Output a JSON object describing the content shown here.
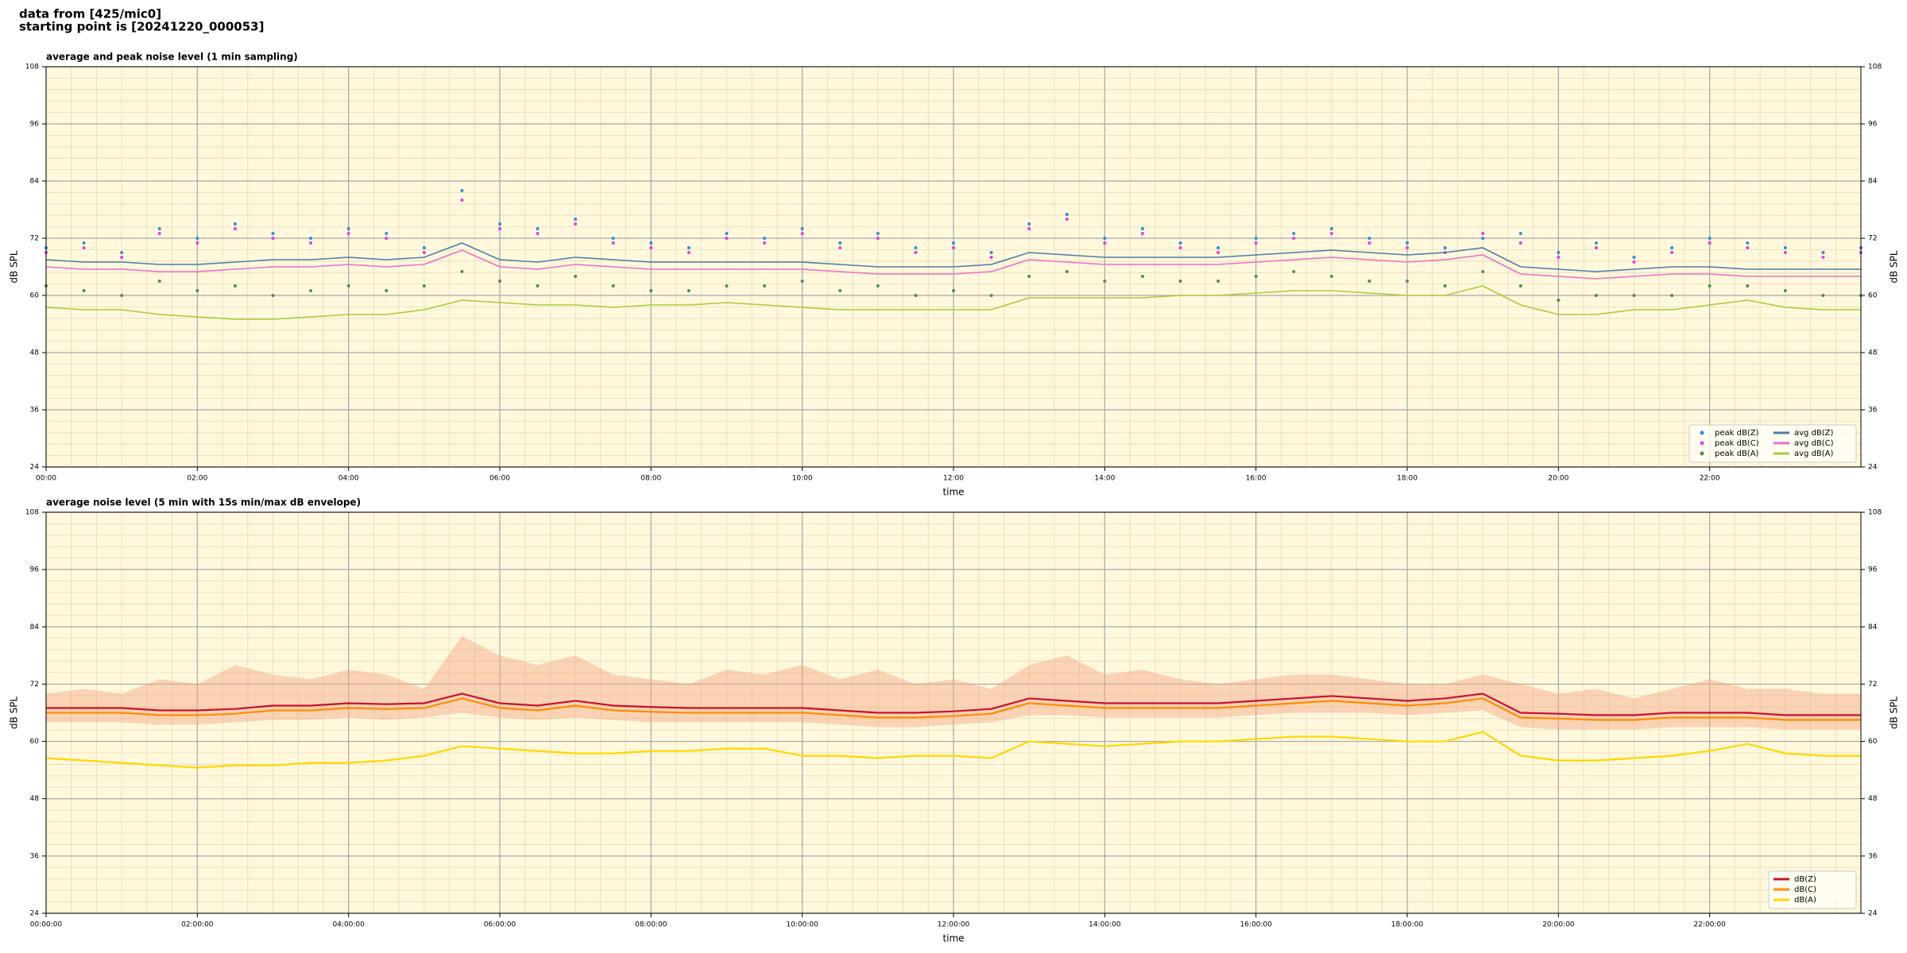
{
  "header": {
    "line1": "data from [425/mic0]",
    "line2": "starting point is [20241220_000053]"
  },
  "chart_data": [
    {
      "type": "line",
      "title": "average and peak noise level (1 min sampling)",
      "xlabel": "time",
      "ylabel": "dB SPL",
      "background": "#fff8dc",
      "grid": true,
      "minor_divisions": [
        6,
        5
      ],
      "legend": "lower right",
      "legend_columns": 2,
      "xlim": [
        0,
        24
      ],
      "ylim": [
        24,
        108
      ],
      "yticks": [
        24,
        36,
        48,
        60,
        72,
        84,
        96,
        108
      ],
      "xticks": [
        {
          "value": 0,
          "label": "00:00"
        },
        {
          "value": 2,
          "label": "02:00"
        },
        {
          "value": 4,
          "label": "04:00"
        },
        {
          "value": 6,
          "label": "06:00"
        },
        {
          "value": 8,
          "label": "08:00"
        },
        {
          "value": 10,
          "label": "10:00"
        },
        {
          "value": 12,
          "label": "12:00"
        },
        {
          "value": 14,
          "label": "14:00"
        },
        {
          "value": 16,
          "label": "16:00"
        },
        {
          "value": 18,
          "label": "18:00"
        },
        {
          "value": 20,
          "label": "20:00"
        },
        {
          "value": 22,
          "label": "22:00"
        }
      ],
      "x": [
        0,
        0.5,
        1,
        1.5,
        2,
        2.5,
        3,
        3.5,
        4,
        4.5,
        5,
        5.5,
        6,
        6.5,
        7,
        7.5,
        8,
        8.5,
        9,
        9.5,
        10,
        10.5,
        11,
        11.5,
        12,
        12.5,
        13,
        13.5,
        14,
        14.5,
        15,
        15.5,
        16,
        16.5,
        17,
        17.5,
        18,
        18.5,
        19,
        19.5,
        20,
        20.5,
        21,
        21.5,
        22,
        22.5,
        23,
        23.5,
        24
      ],
      "series": [
        {
          "name": "peak dB(Z)",
          "style": "points",
          "color": "#2f8fd8",
          "values": [
            70,
            71,
            69,
            74,
            72,
            75,
            73,
            72,
            74,
            73,
            70,
            82,
            75,
            74,
            76,
            72,
            71,
            70,
            73,
            72,
            74,
            71,
            73,
            70,
            71,
            69,
            75,
            77,
            72,
            74,
            71,
            70,
            72,
            73,
            74,
            72,
            71,
            70,
            72,
            73,
            69,
            71,
            68,
            70,
            72,
            71,
            70,
            69,
            70
          ]
        },
        {
          "name": "peak dB(C)",
          "style": "points",
          "color": "#e040e0",
          "values": [
            69,
            70,
            68,
            73,
            71,
            74,
            72,
            71,
            73,
            72,
            69,
            80,
            74,
            73,
            75,
            71,
            70,
            69,
            72,
            71,
            73,
            70,
            72,
            69,
            70,
            68,
            74,
            76,
            71,
            73,
            70,
            69,
            71,
            72,
            73,
            71,
            70,
            69,
            73,
            71,
            68,
            70,
            67,
            69,
            71,
            70,
            69,
            68,
            69
          ]
        },
        {
          "name": "peak dB(A)",
          "style": "points",
          "color": "#4f8f4f",
          "values": [
            62,
            61,
            60,
            63,
            61,
            62,
            60,
            61,
            62,
            61,
            62,
            65,
            63,
            62,
            64,
            62,
            61,
            61,
            62,
            62,
            63,
            61,
            62,
            60,
            61,
            60,
            64,
            65,
            63,
            64,
            63,
            63,
            64,
            65,
            64,
            63,
            63,
            62,
            65,
            62,
            59,
            60,
            60,
            60,
            62,
            62,
            61,
            60,
            60
          ]
        },
        {
          "name": "avg dB(Z)",
          "style": "line",
          "color": "#4a7ea8",
          "values": [
            67.5,
            67,
            67,
            66.5,
            66.5,
            67,
            67.5,
            67.5,
            68,
            67.5,
            68,
            71,
            67.5,
            67,
            68,
            67.5,
            67,
            67,
            67,
            67,
            67,
            66.5,
            66,
            66,
            66,
            66.5,
            69,
            68.5,
            68,
            68,
            68,
            68,
            68.5,
            69,
            69.5,
            69,
            68.5,
            69,
            70,
            66,
            65.5,
            65,
            65.5,
            66,
            66,
            65.5,
            65.5,
            65.5,
            65.5
          ]
        },
        {
          "name": "avg dB(C)",
          "style": "line",
          "color": "#ee6ecb",
          "values": [
            66,
            65.5,
            65.5,
            65,
            65,
            65.5,
            66,
            66,
            66.5,
            66,
            66.5,
            69.5,
            66,
            65.5,
            66.5,
            66,
            65.5,
            65.5,
            65.5,
            65.5,
            65.5,
            65,
            64.5,
            64.5,
            64.5,
            65,
            67.5,
            67,
            66.5,
            66.5,
            66.5,
            66.5,
            67,
            67.5,
            68,
            67.5,
            67,
            67.5,
            68.5,
            64.5,
            64,
            63.5,
            64,
            64.5,
            64.5,
            64,
            64,
            64,
            64
          ]
        },
        {
          "name": "avg dB(A)",
          "style": "line",
          "color": "#a8cc3c",
          "values": [
            57.5,
            57,
            57,
            56,
            55.5,
            55,
            55,
            55.5,
            56,
            56,
            57,
            59,
            58.5,
            58,
            58,
            57.5,
            58,
            58,
            58.5,
            58,
            57.5,
            57,
            57,
            57,
            57,
            57,
            59.5,
            59.5,
            59.5,
            59.5,
            60,
            60,
            60.5,
            61,
            61,
            60.5,
            60,
            60,
            62,
            58,
            56,
            56,
            57,
            57,
            58,
            59,
            57.5,
            57,
            57
          ]
        }
      ]
    },
    {
      "type": "line",
      "title": "average noise level (5 min with 15s min/max dB envelope)",
      "xlabel": "time",
      "ylabel": "dB SPL",
      "background": "#fff8dc",
      "grid": true,
      "minor_divisions": [
        6,
        5
      ],
      "legend": "lower right",
      "legend_columns": 1,
      "xlim": [
        0,
        24
      ],
      "ylim": [
        24,
        108
      ],
      "yticks": [
        24,
        36,
        48,
        60,
        72,
        84,
        96,
        108
      ],
      "xticks": [
        {
          "value": 0,
          "label": "00:00:00"
        },
        {
          "value": 2,
          "label": "02:00:00"
        },
        {
          "value": 4,
          "label": "04:00:00"
        },
        {
          "value": 6,
          "label": "06:00:00"
        },
        {
          "value": 8,
          "label": "08:00:00"
        },
        {
          "value": 10,
          "label": "10:00:00"
        },
        {
          "value": 12,
          "label": "12:00:00"
        },
        {
          "value": 14,
          "label": "14:00:00"
        },
        {
          "value": 16,
          "label": "16:00:00"
        },
        {
          "value": 18,
          "label": "18:00:00"
        },
        {
          "value": 20,
          "label": "20:00:00"
        },
        {
          "value": 22,
          "label": "22:00:00"
        }
      ],
      "x": [
        0,
        0.5,
        1,
        1.5,
        2,
        2.5,
        3,
        3.5,
        4,
        4.5,
        5,
        5.5,
        6,
        6.5,
        7,
        7.5,
        8,
        8.5,
        9,
        9.5,
        10,
        10.5,
        11,
        11.5,
        12,
        12.5,
        13,
        13.5,
        14,
        14.5,
        15,
        15.5,
        16,
        16.5,
        17,
        17.5,
        18,
        18.5,
        19,
        19.5,
        20,
        20.5,
        21,
        21.5,
        22,
        22.5,
        23,
        23.5,
        24
      ],
      "envelope": {
        "color": "#f4a582",
        "max": [
          70,
          71,
          70,
          73,
          72,
          76,
          74,
          73,
          75,
          74,
          71,
          82,
          78,
          76,
          78,
          74,
          73,
          72,
          75,
          74,
          76,
          73,
          75,
          72,
          73,
          71,
          76,
          78,
          74,
          75,
          73,
          72,
          73,
          74,
          74,
          73,
          72,
          72,
          74,
          72,
          70,
          71,
          69,
          71,
          73,
          71,
          71,
          70,
          70
        ],
        "min": [
          64,
          64,
          64,
          63.5,
          63.5,
          64,
          64.5,
          64.5,
          65,
          64.5,
          65,
          66,
          65,
          64.5,
          65,
          64.5,
          64,
          64,
          64,
          64,
          64,
          63.5,
          63,
          63,
          63.5,
          64,
          65.5,
          65.5,
          65,
          65,
          65,
          65,
          65.5,
          66,
          66,
          66,
          65.5,
          66,
          66.5,
          63,
          62.5,
          62.5,
          62.5,
          63,
          63,
          63,
          62.5,
          62.5,
          62.5
        ]
      },
      "series": [
        {
          "name": "dB(Z)",
          "style": "line",
          "color": "#c8102e",
          "values": [
            67,
            67,
            67,
            66.5,
            66.5,
            66.8,
            67.5,
            67.5,
            68,
            67.8,
            68,
            70,
            68,
            67.5,
            68.5,
            67.5,
            67.2,
            67,
            67,
            67,
            67,
            66.5,
            66,
            66,
            66.3,
            66.8,
            69,
            68.5,
            68,
            68,
            68,
            68,
            68.5,
            69,
            69.5,
            69,
            68.5,
            69,
            70,
            66,
            65.8,
            65.5,
            65.5,
            66,
            66,
            66,
            65.5,
            65.5,
            65.5
          ]
        },
        {
          "name": "dB(C)",
          "style": "line",
          "color": "#ff8c00",
          "values": [
            66,
            66,
            66,
            65.5,
            65.5,
            65.8,
            66.5,
            66.5,
            67,
            66.8,
            67,
            69,
            67,
            66.5,
            67.5,
            66.5,
            66.2,
            66,
            66,
            66,
            66,
            65.5,
            65,
            65,
            65.3,
            65.8,
            68,
            67.5,
            67,
            67,
            67,
            67,
            67.5,
            68,
            68.5,
            68,
            67.5,
            68,
            69,
            65,
            64.8,
            64.5,
            64.5,
            65,
            65,
            65,
            64.5,
            64.5,
            64.5
          ]
        },
        {
          "name": "dB(A)",
          "style": "line",
          "color": "#ffd700",
          "values": [
            56.5,
            56,
            55.5,
            55,
            54.5,
            55,
            55,
            55.5,
            55.5,
            56,
            57,
            59,
            58.5,
            58,
            57.5,
            57.5,
            58,
            58,
            58.5,
            58.5,
            57,
            57,
            56.5,
            57,
            57,
            56.5,
            60,
            59.5,
            59,
            59.5,
            60,
            60,
            60.5,
            61,
            61,
            60.5,
            60,
            60,
            62,
            57,
            56,
            56,
            56.5,
            57,
            58,
            59.5,
            57.5,
            57,
            57
          ]
        }
      ]
    }
  ]
}
